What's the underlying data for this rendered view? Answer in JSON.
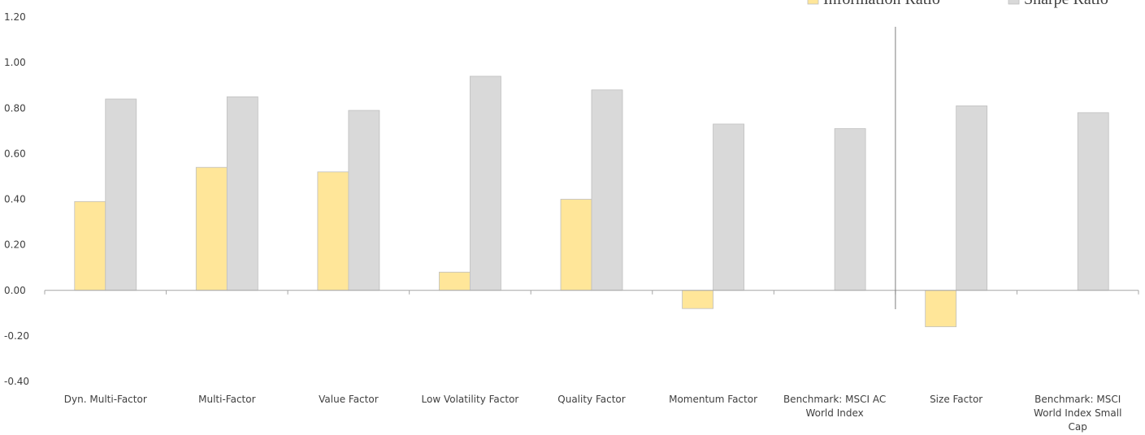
{
  "chart_data": {
    "type": "bar",
    "title": "",
    "xlabel": "",
    "ylabel": "",
    "ylim": [
      -0.4,
      1.2
    ],
    "yticks": [
      1.2,
      1.0,
      0.8,
      0.6,
      0.4,
      0.2,
      0.0,
      -0.2,
      -0.4
    ],
    "ytick_labels": [
      "1.20",
      "1.00",
      "0.80",
      "0.60",
      "0.40",
      "0.20",
      "0.00",
      "-0.20",
      "-0.40"
    ],
    "grid": false,
    "legend_position": "top-right",
    "categories": [
      [
        "Dyn. Multi-Factor"
      ],
      [
        "Multi-Factor"
      ],
      [
        "Value Factor"
      ],
      [
        "Low Volatility Factor"
      ],
      [
        "Quality Factor"
      ],
      [
        "Momentum Factor"
      ],
      [
        "Benchmark: MSCI AC",
        "World Index"
      ],
      [
        "Size Factor"
      ],
      [
        "Benchmark: MSCI",
        "World Index Small",
        "Cap"
      ]
    ],
    "series": [
      {
        "name": "Information Ratio",
        "color": "#ffe699",
        "values": [
          0.39,
          0.54,
          0.52,
          0.08,
          0.4,
          -0.08,
          0.0,
          -0.16,
          0.0
        ]
      },
      {
        "name": "Sharpe Ratio",
        "color": "#d9d9d9",
        "values": [
          0.84,
          0.85,
          0.79,
          0.94,
          0.88,
          0.73,
          0.71,
          0.81,
          0.78
        ]
      }
    ],
    "separator_after_category": 6
  }
}
